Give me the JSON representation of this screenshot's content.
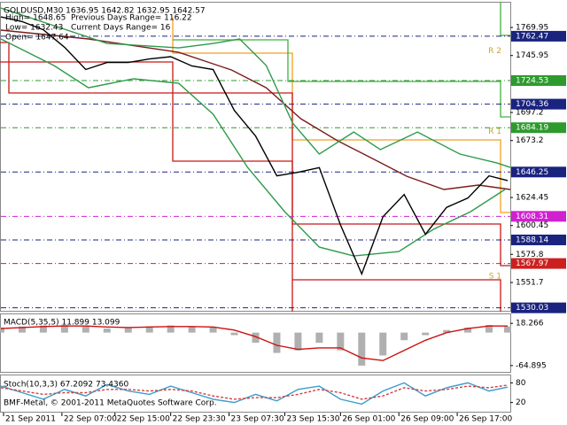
{
  "chart_data": [
    {
      "type": "line",
      "title": "GOLDUSD,M30  1636.95 1642.82 1632.95 1642.57",
      "info": [
        "High= 1648.65",
        "Previous Days Range= 116.22",
        "Low= 1632.43",
        "Current Days Range= 16",
        "Open= 1647.64"
      ],
      "x": [
        0,
        8,
        16,
        24,
        32,
        40,
        48,
        56,
        64,
        72,
        80,
        88,
        96,
        104,
        112,
        120,
        128,
        136,
        144,
        152,
        160,
        168,
        176,
        184,
        191
      ],
      "series": [
        {
          "color": "#000000",
          "values": [
            1779,
            1775,
            1768,
            1753,
            1734,
            1740,
            1740,
            1743,
            1745,
            1737,
            1734,
            1699,
            1677,
            1643,
            1646,
            1650,
            1601,
            1559,
            1608,
            1627,
            1593,
            1616,
            1624,
            1643,
            1639
          ]
        }
      ],
      "overlays": [
        {
          "color": "#7b1c1c",
          "x": [
            0,
            33,
            67,
            87,
            100,
            113,
            127,
            140,
            153,
            167,
            180,
            192
          ],
          "values": [
            1767.7,
            1760.1,
            1748.7,
            1733.5,
            1718.4,
            1691.9,
            1672.9,
            1657.8,
            1642.6,
            1631.3,
            1635.1,
            1631.3
          ]
        },
        {
          "color": "#2e9a4a",
          "x": [
            0,
            20,
            40,
            67,
            80,
            90,
            100,
            110,
            120,
            133,
            143,
            157,
            173,
            187,
            192
          ],
          "values": [
            1786.6,
            1771.5,
            1756.3,
            1752.5,
            1756.3,
            1760.1,
            1737.4,
            1688.1,
            1661.6,
            1680.5,
            1665.4,
            1680.5,
            1661.6,
            1654.0,
            1650.2
          ]
        },
        {
          "color": "#2e9a4a",
          "x": [
            0,
            20,
            33,
            50,
            67,
            80,
            93,
            107,
            120,
            133,
            150,
            163,
            177,
            190
          ],
          "values": [
            1760.1,
            1737.4,
            1718.4,
            1726.0,
            1722.2,
            1695.7,
            1650.2,
            1612.3,
            1582.0,
            1574.4,
            1578.2,
            1597.2,
            1612.3,
            1631.3
          ]
        }
      ],
      "levels": [
        {
          "value": 1762.47,
          "color": "#1a237e"
        },
        {
          "value": 1724.53,
          "color": "#2e9a2e"
        },
        {
          "value": 1704.36,
          "color": "#1a237e"
        },
        {
          "value": 1684.19,
          "color": "#2e9a2e"
        },
        {
          "value": 1646.25,
          "color": "#1a237e"
        },
        {
          "value": 1608.31,
          "color": "#d020d0"
        },
        {
          "value": 1588.14,
          "color": "#1a237e"
        },
        {
          "value": 1567.97,
          "color": "#cc2020"
        },
        {
          "value": 1530.03,
          "color": "#1a237e"
        }
      ],
      "annotations": [
        {
          "text": "R 2",
          "x": 190,
          "y": 1750
        },
        {
          "text": "R 1",
          "x": 190,
          "y": 1681
        },
        {
          "text": "S 1",
          "x": 190,
          "y": 1557
        }
      ],
      "xlim": [
        0,
        192
      ],
      "ylim": [
        1527.5,
        1791.2
      ],
      "yticks": [
        1769.95,
        1745.95,
        1697.2,
        1673.2,
        1624.45,
        1600.45,
        1575.8,
        1551.7
      ],
      "xticks": [
        {
          "value": 1,
          "label": "21 Sep 2011"
        },
        {
          "value": 23,
          "label": "22 Sep 07:00"
        },
        {
          "value": 43,
          "label": "22 Sep 15:00"
        },
        {
          "value": 64,
          "label": "22 Sep 23:30"
        },
        {
          "value": 86,
          "label": "23 Sep 07:30"
        },
        {
          "value": 107,
          "label": "23 Sep 15:30"
        },
        {
          "value": 128,
          "label": "26 Sep 01:00"
        },
        {
          "value": 150,
          "label": "26 Sep 09:00"
        },
        {
          "value": 172,
          "label": "26 Sep 17:00"
        }
      ]
    },
    {
      "type": "bar",
      "title": "MACD(5,35,5) 11.899 13.099",
      "x": [
        0,
        8,
        16,
        24,
        32,
        40,
        48,
        56,
        64,
        72,
        80,
        88,
        96,
        104,
        112,
        120,
        128,
        136,
        144,
        152,
        160,
        168,
        176,
        184,
        191
      ],
      "series": [
        {
          "style": "histogram",
          "color": "#b0b0b0",
          "values": [
            10,
            12,
            14,
            15,
            12,
            8,
            10,
            12,
            14,
            12,
            10,
            -5,
            -20,
            -40,
            -35,
            -20,
            -35,
            -65,
            -45,
            -15,
            -5,
            5,
            10,
            15,
            12
          ]
        },
        {
          "style": "line",
          "color": "#cc1010",
          "values": [
            8,
            10,
            12,
            13,
            13,
            11,
            10,
            11,
            12,
            12,
            11,
            5,
            -8,
            -25,
            -33,
            -30,
            -30,
            -50,
            -55,
            -35,
            -15,
            0,
            8,
            13,
            13
          ]
        }
      ],
      "xlim": [
        0,
        192
      ],
      "ylim": [
        -77.3,
        36.0
      ],
      "yticks": [
        18.266,
        -64.895
      ]
    },
    {
      "type": "line",
      "title": "Stoch(10,3,3) 67.2092 73.4360",
      "footer": "BMF-Metal, © 2001-2011 MetaQuotes Software Corp.",
      "x": [
        0,
        8,
        16,
        24,
        32,
        40,
        48,
        56,
        64,
        72,
        80,
        88,
        96,
        104,
        112,
        120,
        128,
        136,
        144,
        152,
        160,
        168,
        176,
        184,
        191
      ],
      "series": [
        {
          "style": "line",
          "color": "#3b9ccc",
          "values": [
            70,
            50,
            30,
            60,
            40,
            75,
            55,
            45,
            70,
            50,
            30,
            20,
            45,
            25,
            60,
            70,
            30,
            15,
            55,
            80,
            40,
            65,
            80,
            55,
            67
          ]
        },
        {
          "style": "dashed",
          "color": "#d04040",
          "values": [
            65,
            55,
            45,
            50,
            50,
            60,
            60,
            55,
            60,
            55,
            40,
            30,
            35,
            35,
            45,
            60,
            50,
            30,
            40,
            65,
            55,
            60,
            70,
            65,
            73
          ]
        }
      ],
      "xlim": [
        0,
        192
      ],
      "ylim": [
        0,
        100
      ],
      "yticks": [
        80,
        20
      ]
    }
  ]
}
